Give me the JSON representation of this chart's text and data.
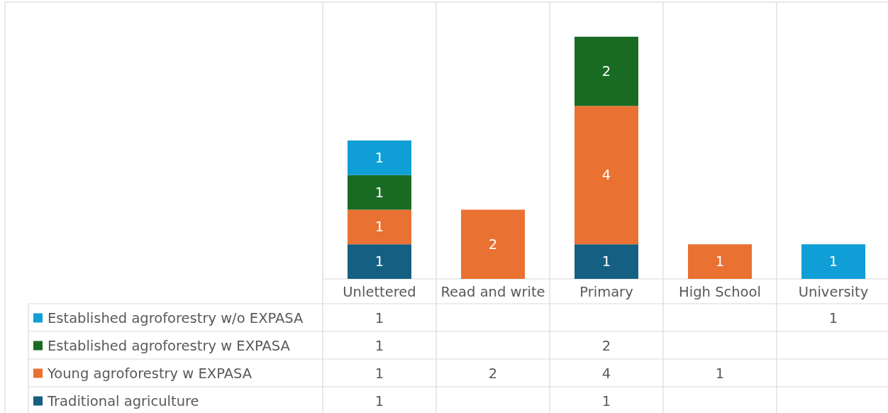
{
  "chart_data": {
    "type": "bar",
    "stacked": true,
    "categories": [
      "Unlettered",
      "Read and write",
      "Primary",
      "High School",
      "University"
    ],
    "series": [
      {
        "name": "Traditional agriculture",
        "color": "#156082",
        "values": [
          1,
          null,
          1,
          null,
          null
        ]
      },
      {
        "name": "Young agroforestry w EXPASA",
        "color": "#e97132",
        "values": [
          1,
          2,
          4,
          1,
          null
        ]
      },
      {
        "name": "Established agroforestry w EXPASA",
        "color": "#196b24",
        "values": [
          1,
          null,
          2,
          null,
          null
        ]
      },
      {
        "name": "Established agroforestry w/o EXPASA",
        "color": "#0f9ed5",
        "values": [
          1,
          null,
          null,
          null,
          1
        ]
      }
    ],
    "annotations": [
      "1",
      "1",
      "1",
      "2",
      "1",
      "2",
      "4",
      "1",
      "1",
      "1"
    ],
    "data_labels": true,
    "legend": "bottom"
  }
}
